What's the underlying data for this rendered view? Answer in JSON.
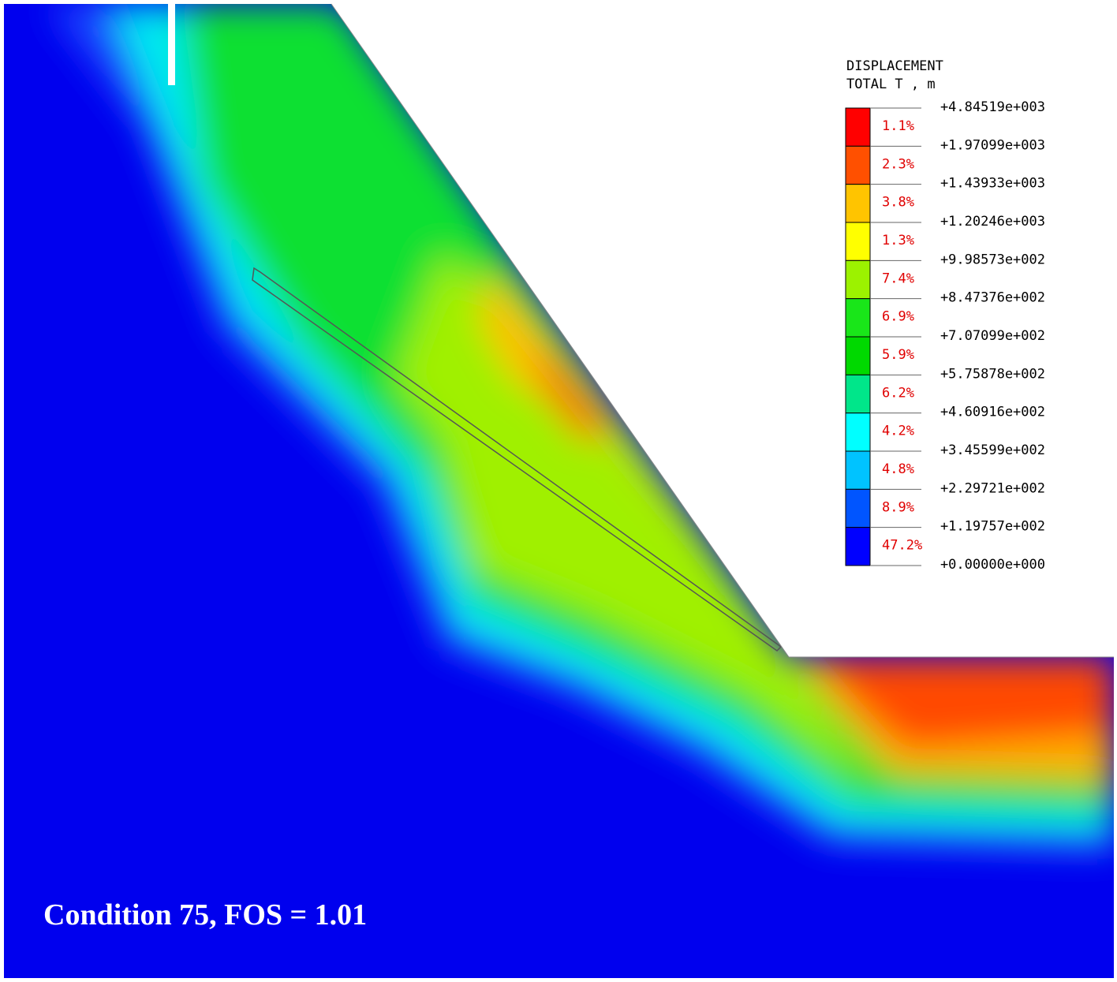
{
  "legend": {
    "title": [
      "DISPLACEMENT",
      "TOTAL T , m"
    ],
    "levels": [
      "+4.84519e+003",
      "+1.97099e+003",
      "+1.43933e+003",
      "+1.20246e+003",
      "+9.98573e+002",
      "+8.47376e+002",
      "+7.07099e+002",
      "+5.75878e+002",
      "+4.60916e+002",
      "+3.45599e+002",
      "+2.29721e+002",
      "+1.19757e+002",
      "+0.00000e+000"
    ],
    "bands": [
      {
        "percent": "1.1%",
        "color": "#ff0000"
      },
      {
        "percent": "2.3%",
        "color": "#ff5000"
      },
      {
        "percent": "3.8%",
        "color": "#ffc400"
      },
      {
        "percent": "1.3%",
        "color": "#ffff00"
      },
      {
        "percent": "7.4%",
        "color": "#9cf200"
      },
      {
        "percent": "6.9%",
        "color": "#19e619"
      },
      {
        "percent": "5.9%",
        "color": "#00d900"
      },
      {
        "percent": "6.2%",
        "color": "#00e68a"
      },
      {
        "percent": "4.2%",
        "color": "#00ffff"
      },
      {
        "percent": "4.8%",
        "color": "#00c3ff"
      },
      {
        "percent": "8.9%",
        "color": "#0055ff"
      },
      {
        "percent": "47.2%",
        "color": "#0000ff"
      }
    ]
  },
  "caption": "Condition 75, FOS = 1.01"
}
